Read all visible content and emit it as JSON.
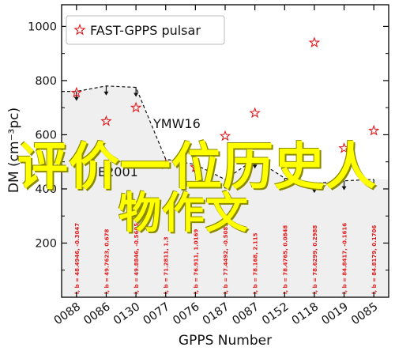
{
  "chart_data": {
    "type": "scatter",
    "xlabel": "GPPS Number",
    "ylabel": "DM (cm⁻³pc)",
    "ylim": [
      0,
      1080
    ],
    "yticks": [
      200,
      400,
      600,
      800,
      1000
    ],
    "categories": [
      "0088",
      "0086",
      "0130",
      "0077",
      "0076",
      "0187",
      "0087",
      "0152",
      "0118",
      "0019",
      "0085"
    ],
    "gl_labels": [
      "l, b = 48.4946, -0.3047",
      "l, b = 49.7623, 0.678",
      "l, b = 49.8846, -0.5605",
      "l, b = 71.2811, 1.3",
      "l, b = 76.911, 1.0169",
      "l, b = 77.4492, -0.5085",
      "l, b = 78.168, 2.115",
      "l, b = 78.4765, 0.0848",
      "l, b = 78.6299, 0.2988",
      "l, b = 84.8417, -0.1616",
      "l, b = 84.8179, 0.1706"
    ],
    "series": [
      {
        "name": "FAST-GPPS pulsar",
        "marker": "star",
        "color": "#e31a1c",
        "values": [
          755,
          650,
          700,
          490,
          480,
          595,
          680,
          490,
          940,
          550,
          615
        ]
      }
    ],
    "ymw16_max": [
      760,
      780,
      775,
      510,
      490,
      435,
      510,
      440,
      420,
      430,
      435
    ],
    "ne2001_max": [
      670,
      640,
      590,
      410,
      380,
      360,
      395,
      400,
      400,
      365,
      365
    ],
    "annotations": [
      "YMW16",
      "NE2001"
    ],
    "legend_position": "top-left",
    "colors": {
      "ymw16_line": "#111111",
      "ymw16_fill": "#efefef",
      "ne2001_line": "#1f3df0",
      "ne2001_fill": "#d8d8f2",
      "star": "#e31a1c"
    }
  },
  "overlay_text": [
    "评价一位历史人",
    "物作文"
  ]
}
